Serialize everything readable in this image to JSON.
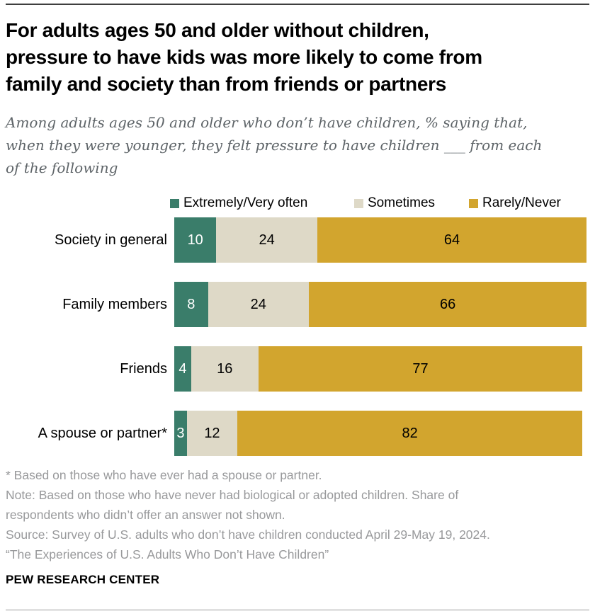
{
  "header": {
    "title_lines": [
      "For adults ages 50 and older without children,",
      "pressure to have kids was more likely to come from",
      "family and society than from friends or partners"
    ],
    "subtitle_lines": [
      "Among adults ages 50 and older who don’t have children, % saying that,",
      "when they were younger, they felt pressure to have children ___ from each",
      "of the following"
    ]
  },
  "chart_data": {
    "type": "bar",
    "stacked": true,
    "orientation": "horizontal",
    "title": "For adults ages 50 and older without children, pressure to have kids was more likely to come from family and society than from friends or partners",
    "subtitle": "Among adults ages 50 and older who don’t have children, % saying that, when they were younger, they felt pressure to have children ___ from each of the following",
    "categories": [
      "Society in general",
      "Family members",
      "Friends",
      "A spouse or partner*"
    ],
    "series": [
      {
        "key": "extremely-very-often",
        "name": "Extremely/Very often",
        "color": "#3a7d6a",
        "label_color": "#ffffff",
        "values": [
          10,
          8,
          4,
          3
        ]
      },
      {
        "key": "sometimes",
        "name": "Sometimes",
        "color": "#ded9c7",
        "label_color": "#000000",
        "values": [
          24,
          24,
          16,
          12
        ]
      },
      {
        "key": "rarely-never",
        "name": "Rarely/Never",
        "color": "#d2a52e",
        "label_color": "#000000",
        "values": [
          64,
          66,
          77,
          82
        ]
      }
    ],
    "xlim": [
      0,
      100
    ],
    "value_unit": "%",
    "grid": false,
    "axes_shown": false,
    "legend_position": "top",
    "data_labels": "inside"
  },
  "notes": {
    "lines": [
      "* Based on those who have ever had a spouse or partner.",
      "Note: Based on those who have never had biological or adopted children. Share of",
      "respondents who didn’t offer an answer not shown.",
      "Source: Survey of U.S. adults who don’t have children conducted April 29-May 19, 2024.",
      "“The Experiences of U.S. Adults Who Don’t Have Children”"
    ]
  },
  "branding": {
    "name": "PEW RESEARCH CENTER"
  },
  "colors": {
    "title": "#000000",
    "subtitle": "#5e6468",
    "notes": "#98999b",
    "rule_top": "#3f3f3f",
    "rule_bottom": "#9a9a9a",
    "background": "#ffffff"
  }
}
